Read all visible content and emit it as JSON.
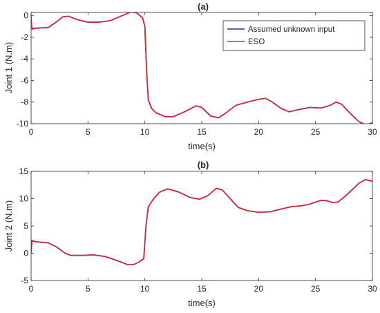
{
  "chart_data": [
    {
      "type": "line",
      "title": "(a)",
      "xlabel": "time(s)",
      "ylabel": "Joint 1 (N.m)",
      "xlim": [
        0,
        30
      ],
      "ylim": [
        -10,
        0.3
      ],
      "xticks": [
        0,
        5,
        10,
        15,
        20,
        25,
        30
      ],
      "yticks": [
        0,
        -2,
        -4,
        -6,
        -8,
        -10
      ],
      "grid": false,
      "legend": {
        "location": "top-right",
        "entries": [
          "Assumed unknown input",
          "ESO"
        ]
      },
      "series": [
        {
          "name": "Assumed unknown input",
          "color": "#1f3a93",
          "points": [
            [
              0,
              -1.2
            ],
            [
              0.5,
              -1.15
            ],
            [
              1.5,
              -1.1
            ],
            [
              2.2,
              -0.6
            ],
            [
              2.8,
              -0.1
            ],
            [
              3.3,
              -0.05
            ],
            [
              4.0,
              -0.35
            ],
            [
              5.0,
              -0.6
            ],
            [
              6.0,
              -0.6
            ],
            [
              7.0,
              -0.45
            ],
            [
              8.0,
              0.0
            ],
            [
              8.8,
              0.35
            ],
            [
              9.3,
              0.25
            ],
            [
              9.8,
              -0.2
            ],
            [
              10.0,
              -1.0
            ],
            [
              10.15,
              -5.0
            ],
            [
              10.3,
              -7.8
            ],
            [
              10.6,
              -8.6
            ],
            [
              11.0,
              -9.0
            ],
            [
              11.8,
              -9.35
            ],
            [
              12.5,
              -9.35
            ],
            [
              13.5,
              -8.9
            ],
            [
              14.5,
              -8.35
            ],
            [
              15.0,
              -8.5
            ],
            [
              15.8,
              -9.3
            ],
            [
              16.5,
              -9.45
            ],
            [
              17.0,
              -9.1
            ],
            [
              18.0,
              -8.3
            ],
            [
              19.0,
              -8.0
            ],
            [
              20.0,
              -7.75
            ],
            [
              20.6,
              -7.65
            ],
            [
              21.2,
              -8.0
            ],
            [
              22.0,
              -8.6
            ],
            [
              22.7,
              -8.9
            ],
            [
              23.5,
              -8.7
            ],
            [
              24.5,
              -8.5
            ],
            [
              25.5,
              -8.55
            ],
            [
              26.3,
              -8.3
            ],
            [
              26.8,
              -8.0
            ],
            [
              27.3,
              -8.2
            ],
            [
              28.0,
              -9.0
            ],
            [
              28.8,
              -9.8
            ],
            [
              29.4,
              -10.1
            ],
            [
              29.8,
              -10.0
            ],
            [
              30.0,
              -9.9
            ]
          ]
        },
        {
          "name": "ESO",
          "color": "#e8232c",
          "points": [
            [
              0,
              0.0
            ],
            [
              0.08,
              -1.25
            ],
            [
              0.5,
              -1.15
            ],
            [
              1.5,
              -1.1
            ],
            [
              2.2,
              -0.6
            ],
            [
              2.8,
              -0.1
            ],
            [
              3.3,
              -0.05
            ],
            [
              4.0,
              -0.35
            ],
            [
              5.0,
              -0.6
            ],
            [
              6.0,
              -0.6
            ],
            [
              7.0,
              -0.45
            ],
            [
              8.0,
              0.0
            ],
            [
              8.8,
              0.35
            ],
            [
              9.3,
              0.25
            ],
            [
              9.8,
              -0.2
            ],
            [
              10.0,
              -1.0
            ],
            [
              10.15,
              -5.0
            ],
            [
              10.3,
              -7.8
            ],
            [
              10.6,
              -8.6
            ],
            [
              11.0,
              -9.0
            ],
            [
              11.8,
              -9.35
            ],
            [
              12.5,
              -9.35
            ],
            [
              13.5,
              -8.9
            ],
            [
              14.5,
              -8.35
            ],
            [
              15.0,
              -8.5
            ],
            [
              15.8,
              -9.3
            ],
            [
              16.5,
              -9.45
            ],
            [
              17.0,
              -9.1
            ],
            [
              18.0,
              -8.3
            ],
            [
              19.0,
              -8.0
            ],
            [
              20.0,
              -7.75
            ],
            [
              20.6,
              -7.65
            ],
            [
              21.2,
              -8.0
            ],
            [
              22.0,
              -8.6
            ],
            [
              22.7,
              -8.9
            ],
            [
              23.5,
              -8.7
            ],
            [
              24.5,
              -8.5
            ],
            [
              25.5,
              -8.55
            ],
            [
              26.3,
              -8.3
            ],
            [
              26.8,
              -8.0
            ],
            [
              27.3,
              -8.2
            ],
            [
              28.0,
              -9.0
            ],
            [
              28.8,
              -9.8
            ],
            [
              29.4,
              -10.1
            ],
            [
              29.8,
              -10.0
            ],
            [
              30.0,
              -9.9
            ]
          ]
        }
      ]
    },
    {
      "type": "line",
      "title": "(b)",
      "xlabel": "time(s)",
      "ylabel": "Joint 2 (N.m)",
      "xlim": [
        0,
        30
      ],
      "ylim": [
        -5,
        15
      ],
      "xticks": [
        0,
        5,
        10,
        15,
        20,
        25,
        30
      ],
      "yticks": [
        15,
        10,
        5,
        0,
        -5
      ],
      "grid": false,
      "series": [
        {
          "name": "Assumed unknown input",
          "color": "#1f3a93",
          "points": [
            [
              0,
              2.3
            ],
            [
              0.5,
              2.1
            ],
            [
              1.5,
              1.9
            ],
            [
              2.2,
              1.2
            ],
            [
              3.0,
              0.0
            ],
            [
              3.5,
              -0.4
            ],
            [
              4.5,
              -0.4
            ],
            [
              5.5,
              -0.3
            ],
            [
              6.5,
              -0.6
            ],
            [
              7.5,
              -1.3
            ],
            [
              8.5,
              -2.1
            ],
            [
              9.0,
              -2.1
            ],
            [
              9.5,
              -1.6
            ],
            [
              9.9,
              -1.0
            ],
            [
              10.1,
              5.0
            ],
            [
              10.3,
              8.5
            ],
            [
              10.7,
              9.8
            ],
            [
              11.3,
              11.2
            ],
            [
              12.0,
              11.8
            ],
            [
              13.0,
              11.2
            ],
            [
              14.0,
              10.2
            ],
            [
              14.8,
              9.9
            ],
            [
              15.5,
              10.5
            ],
            [
              16.3,
              11.9
            ],
            [
              16.8,
              11.6
            ],
            [
              17.5,
              10.0
            ],
            [
              18.2,
              8.4
            ],
            [
              19.0,
              7.8
            ],
            [
              20.0,
              7.5
            ],
            [
              21.0,
              7.6
            ],
            [
              22.0,
              8.1
            ],
            [
              22.8,
              8.5
            ],
            [
              23.8,
              8.7
            ],
            [
              24.5,
              9.0
            ],
            [
              25.5,
              9.7
            ],
            [
              26.0,
              9.6
            ],
            [
              26.5,
              9.3
            ],
            [
              27.0,
              9.4
            ],
            [
              27.8,
              10.8
            ],
            [
              28.8,
              12.8
            ],
            [
              29.4,
              13.5
            ],
            [
              30.0,
              13.2
            ]
          ]
        },
        {
          "name": "ESO",
          "color": "#e8232c",
          "points": [
            [
              0,
              0.0
            ],
            [
              0.08,
              2.35
            ],
            [
              0.5,
              2.1
            ],
            [
              1.5,
              1.9
            ],
            [
              2.2,
              1.2
            ],
            [
              3.0,
              0.0
            ],
            [
              3.5,
              -0.4
            ],
            [
              4.5,
              -0.4
            ],
            [
              5.5,
              -0.3
            ],
            [
              6.5,
              -0.6
            ],
            [
              7.5,
              -1.3
            ],
            [
              8.5,
              -2.1
            ],
            [
              9.0,
              -2.1
            ],
            [
              9.5,
              -1.6
            ],
            [
              9.9,
              -1.0
            ],
            [
              10.1,
              5.0
            ],
            [
              10.3,
              8.5
            ],
            [
              10.7,
              9.8
            ],
            [
              11.3,
              11.2
            ],
            [
              12.0,
              11.8
            ],
            [
              13.0,
              11.2
            ],
            [
              14.0,
              10.2
            ],
            [
              14.8,
              9.9
            ],
            [
              15.5,
              10.5
            ],
            [
              16.3,
              11.9
            ],
            [
              16.8,
              11.6
            ],
            [
              17.5,
              10.0
            ],
            [
              18.2,
              8.4
            ],
            [
              19.0,
              7.8
            ],
            [
              20.0,
              7.5
            ],
            [
              21.0,
              7.6
            ],
            [
              22.0,
              8.1
            ],
            [
              22.8,
              8.5
            ],
            [
              23.8,
              8.7
            ],
            [
              24.5,
              9.0
            ],
            [
              25.5,
              9.7
            ],
            [
              26.0,
              9.6
            ],
            [
              26.5,
              9.3
            ],
            [
              27.0,
              9.4
            ],
            [
              27.8,
              10.8
            ],
            [
              28.8,
              12.8
            ],
            [
              29.4,
              13.5
            ],
            [
              30.0,
              13.2
            ]
          ]
        }
      ]
    }
  ]
}
